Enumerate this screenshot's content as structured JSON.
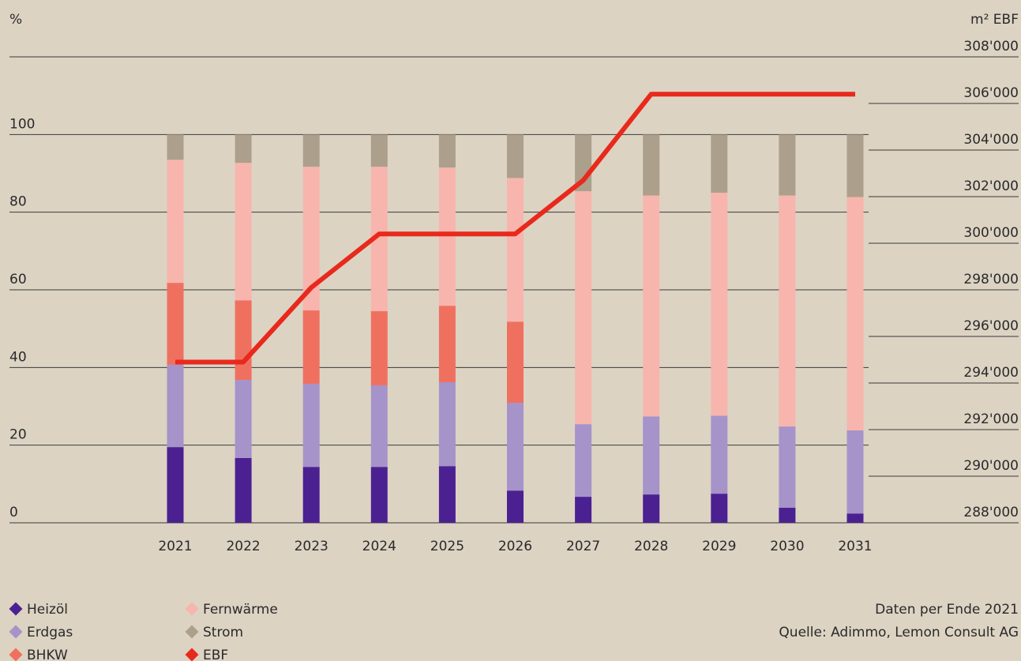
{
  "chart_data": {
    "type": "bar",
    "stacked": true,
    "ylabel": "%",
    "y2label": "m² EBF",
    "categories": [
      "2021",
      "2022",
      "2023",
      "2024",
      "2025",
      "2026",
      "2027",
      "2028",
      "2029",
      "2030",
      "2031"
    ],
    "ylim": [
      0,
      120
    ],
    "yticks": [
      0,
      20,
      40,
      60,
      80,
      100
    ],
    "y2lim": [
      288000,
      308000
    ],
    "y2ticks": [
      {
        "value": 288000,
        "label": "288'000"
      },
      {
        "value": 290000,
        "label": "290'000"
      },
      {
        "value": 292000,
        "label": "292'000"
      },
      {
        "value": 294000,
        "label": "294'000"
      },
      {
        "value": 296000,
        "label": "296'000"
      },
      {
        "value": 298000,
        "label": "298'000"
      },
      {
        "value": 300000,
        "label": "300'000"
      },
      {
        "value": 302000,
        "label": "302'000"
      },
      {
        "value": 304000,
        "label": "304'000"
      },
      {
        "value": 306000,
        "label": "306'000"
      },
      {
        "value": 308000,
        "label": "308'000"
      }
    ],
    "series": [
      {
        "name": "Heizöl",
        "color": "#4b2192",
        "values": [
          19.5,
          16.7,
          14.4,
          14.4,
          14.6,
          8.3,
          6.7,
          7.3,
          7.5,
          3.9,
          2.4
        ]
      },
      {
        "name": "Erdgas",
        "color": "#a693c9",
        "values": [
          21.2,
          20.1,
          21.4,
          21.0,
          21.6,
          22.6,
          18.7,
          20.1,
          20.1,
          20.9,
          21.4
        ]
      },
      {
        "name": "BHKW",
        "color": "#f07060",
        "values": [
          21.1,
          20.5,
          18.9,
          19.1,
          19.7,
          20.9,
          0,
          0,
          0,
          0,
          0
        ]
      },
      {
        "name": "Fernwärme",
        "color": "#f8b5ad",
        "values": [
          31.7,
          35.4,
          37.0,
          37.2,
          35.6,
          37.0,
          60.0,
          56.9,
          57.4,
          59.5,
          60.1
        ]
      },
      {
        "name": "Strom",
        "color": "#aca08c",
        "values": [
          6.5,
          7.3,
          8.3,
          8.3,
          8.5,
          11.2,
          14.6,
          15.7,
          15.0,
          15.7,
          16.1
        ]
      },
      {
        "name": "EBF",
        "color": "#e8291c",
        "type": "line",
        "axis": "y2",
        "values": [
          294900,
          294900,
          298100,
          300400,
          300400,
          300400,
          302700,
          306400,
          306400,
          306400,
          306400
        ]
      }
    ],
    "notes": [
      "Daten per Ende 2021",
      "Quelle: Adimmo, Lemon Consult AG"
    ]
  }
}
